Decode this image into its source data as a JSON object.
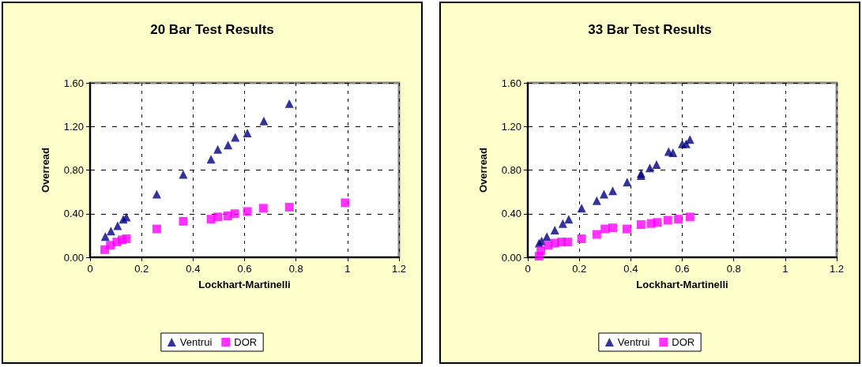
{
  "chart_data": [
    {
      "type": "scatter",
      "title": "20 Bar Test Results",
      "xlabel": "Lockhart-Martinelli",
      "ylabel": "Overread",
      "xlim": [
        0,
        1.2
      ],
      "xticks": [
        0,
        0.2,
        0.4,
        0.6,
        0.8,
        1,
        1.2
      ],
      "ylim": [
        0,
        1.6
      ],
      "yticks": [
        {
          "value": 0,
          "label": "0.00"
        },
        {
          "value": 0.4,
          "label": "0.40"
        },
        {
          "value": 0.8,
          "label": "0.80"
        },
        {
          "value": 1.2,
          "label": "1.20"
        },
        {
          "value": 1.6,
          "label": "1.60"
        }
      ],
      "grid": true,
      "legend": "bottom",
      "series": [
        {
          "name": "Ventrui",
          "color": "#000080",
          "marker": "triangle",
          "x": [
            0.059,
            0.081,
            0.107,
            0.129,
            0.141,
            0.259,
            0.362,
            0.47,
            0.496,
            0.536,
            0.564,
            0.611,
            0.675,
            0.774
          ],
          "values": [
            0.19,
            0.24,
            0.29,
            0.35,
            0.37,
            0.58,
            0.76,
            0.9,
            0.99,
            1.03,
            1.1,
            1.14,
            1.25,
            1.41
          ]
        },
        {
          "name": "DOR",
          "color": "#ff00ff",
          "marker": "square",
          "x": [
            0.057,
            0.079,
            0.104,
            0.124,
            0.141,
            0.259,
            0.362,
            0.47,
            0.496,
            0.535,
            0.562,
            0.611,
            0.673,
            0.774,
            0.991
          ],
          "values": [
            0.07,
            0.11,
            0.14,
            0.16,
            0.17,
            0.26,
            0.33,
            0.35,
            0.37,
            0.38,
            0.4,
            0.42,
            0.45,
            0.46,
            0.5
          ]
        }
      ]
    },
    {
      "type": "scatter",
      "title": "33 Bar Test Results",
      "xlabel": "Lockhart-Martinelli",
      "ylabel": "Overread",
      "xlim": [
        0,
        1.2
      ],
      "xticks": [
        0,
        0.2,
        0.4,
        0.6,
        0.8,
        1,
        1.2
      ],
      "ylim": [
        0,
        1.6
      ],
      "yticks": [
        {
          "value": 0,
          "label": "0.00"
        },
        {
          "value": 0.4,
          "label": "0.40"
        },
        {
          "value": 0.8,
          "label": "0.80"
        },
        {
          "value": 1.2,
          "label": "1.20"
        },
        {
          "value": 1.6,
          "label": "1.60"
        }
      ],
      "grid": true,
      "legend": "bottom",
      "series": [
        {
          "name": "Ventrui",
          "color": "#000080",
          "marker": "triangle",
          "x": [
            0.044,
            0.054,
            0.074,
            0.105,
            0.136,
            0.159,
            0.209,
            0.268,
            0.296,
            0.33,
            0.386,
            0.44,
            0.44,
            0.474,
            0.5,
            0.547,
            0.564,
            0.6,
            0.615,
            0.63
          ],
          "values": [
            0.13,
            0.15,
            0.19,
            0.25,
            0.31,
            0.35,
            0.45,
            0.52,
            0.58,
            0.61,
            0.69,
            0.75,
            0.77,
            0.82,
            0.85,
            0.97,
            0.96,
            1.04,
            1.04,
            1.08
          ]
        },
        {
          "name": "DOR",
          "color": "#ff00ff",
          "marker": "square",
          "x": [
            0.044,
            0.051,
            0.08,
            0.105,
            0.131,
            0.156,
            0.209,
            0.268,
            0.3,
            0.33,
            0.385,
            0.44,
            0.479,
            0.503,
            0.544,
            0.585,
            0.63
          ],
          "values": [
            0.01,
            0.06,
            0.11,
            0.13,
            0.14,
            0.14,
            0.17,
            0.21,
            0.26,
            0.27,
            0.26,
            0.3,
            0.31,
            0.32,
            0.34,
            0.35,
            0.37
          ]
        }
      ]
    }
  ]
}
